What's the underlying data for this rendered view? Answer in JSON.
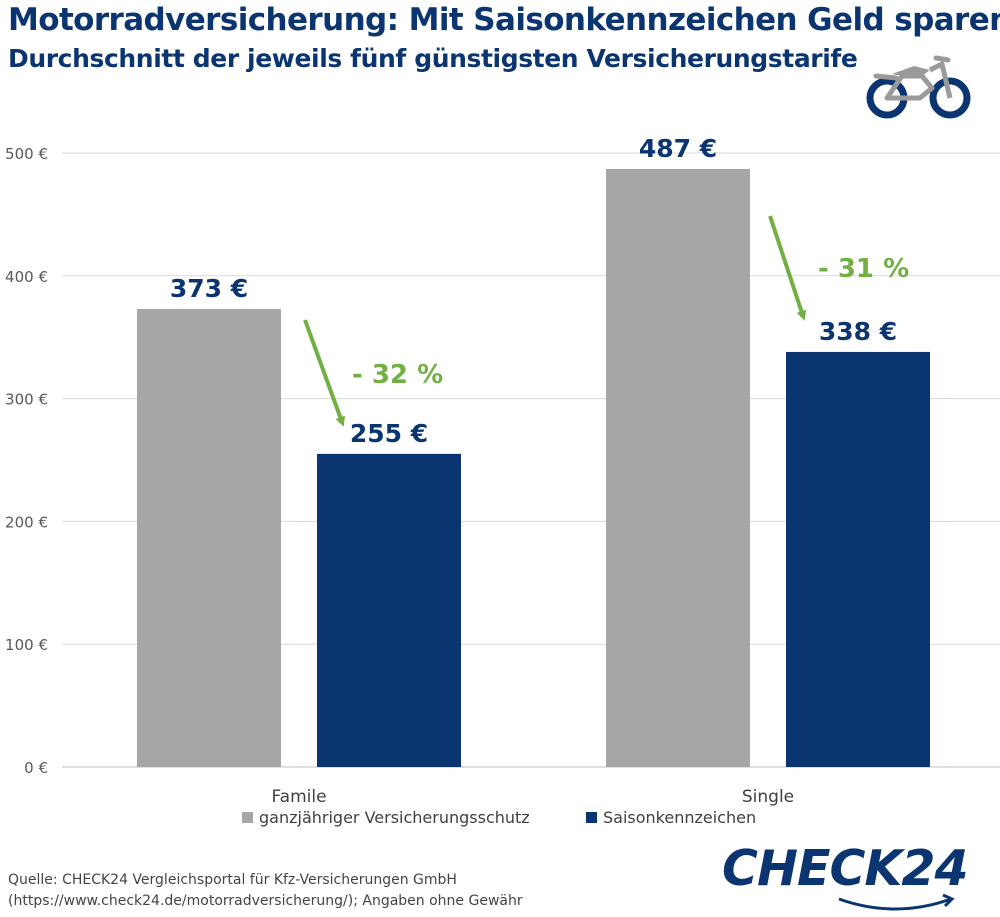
{
  "title": "Motorradversicherung: Mit Saisonkennzeichen Geld sparen",
  "subtitle": "Durchschnitt der jeweils fünf günstigsten Versicherungstarife",
  "icon": "motorcycle-icon",
  "source_lines": [
    "Quelle: CHECK24 Vergleichsportal für Kfz-Versicherungen GmbH",
    "(https://www.check24.de/motorradversicherung/); Angaben ohne Gewähr"
  ],
  "logo_text": "CHECK24",
  "colors": {
    "title": "#0b3570",
    "grey_series": "#a6a6a6",
    "navy_series": "#0b3570",
    "arrow": "#72b043",
    "grid": "#d9d9d9"
  },
  "chart_data": {
    "type": "bar",
    "categories": [
      "Famile",
      "Single"
    ],
    "series": [
      {
        "name": "ganzjähriger Versicherungsschutz",
        "values": [
          373,
          487
        ],
        "labels": [
          "373 €",
          "487 €"
        ]
      },
      {
        "name": "Saisonkennzeichen",
        "values": [
          255,
          338
        ],
        "labels": [
          "255 €",
          "338 €"
        ]
      }
    ],
    "annotations": [
      "- 32 %",
      "- 31 %"
    ],
    "ylim": [
      0,
      500
    ],
    "yticks": [
      0,
      100,
      200,
      300,
      400,
      500
    ],
    "ytick_labels": [
      "0 €",
      "100 €",
      "200 €",
      "300 €",
      "400 €",
      "500 €"
    ],
    "grid": true,
    "legend_position": "bottom"
  }
}
